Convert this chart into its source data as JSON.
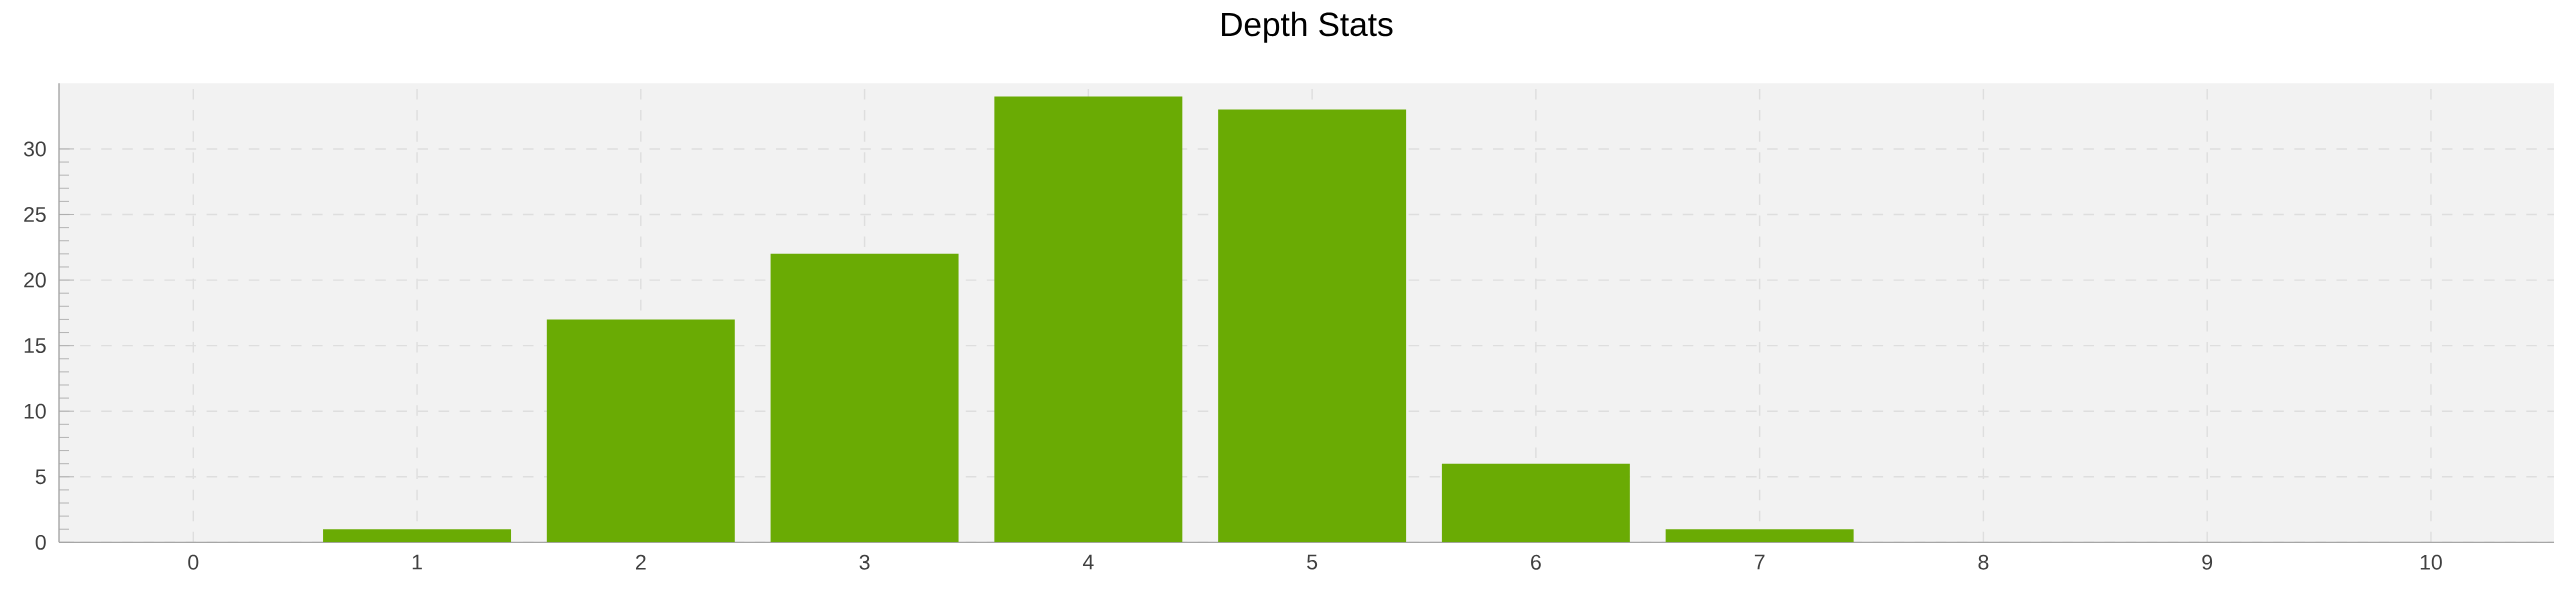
{
  "chart_data": {
    "type": "bar",
    "title": "Depth Stats",
    "categories": [
      "0",
      "1",
      "2",
      "3",
      "4",
      "5",
      "6",
      "7",
      "8",
      "9",
      "10"
    ],
    "values": [
      0,
      1,
      17,
      22,
      34,
      33,
      6,
      1,
      0,
      0,
      0
    ],
    "color": "#6aab04",
    "ylim": [
      0,
      35
    ],
    "yticks": [
      0,
      5,
      10,
      15,
      20,
      25,
      30
    ],
    "grid": true
  }
}
